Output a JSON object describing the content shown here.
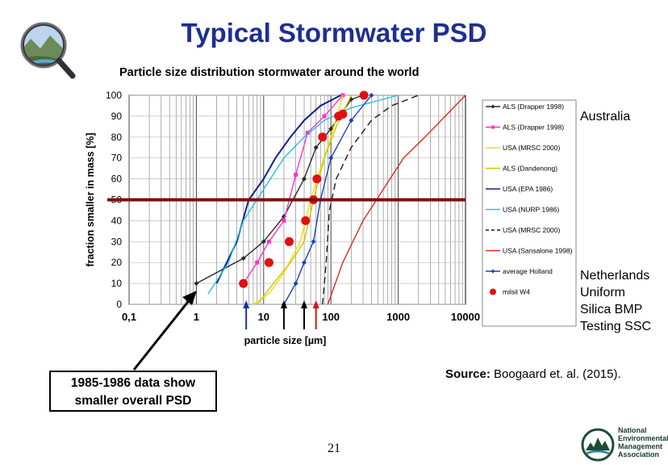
{
  "slide": {
    "title": "Typical Stormwater PSD",
    "page_number": "21",
    "source_label": "Source:",
    "source_text": " Boogaard et. al. (2015).",
    "callout": [
      "1985-1986 data show",
      "smaller overall PSD"
    ],
    "side_notes": {
      "australia": "Australia",
      "netherlands": [
        "Netherlands",
        "Uniform",
        "Silica BMP",
        "Testing SSC"
      ]
    },
    "logo_text": [
      "National",
      "Environmental",
      "Management",
      "Association"
    ]
  },
  "chart_data": {
    "type": "line",
    "title": "Particle size distribution stormwater around the world",
    "xlabel": "particle size [µm]",
    "ylabel": "fraction smaller in mass [%]",
    "x_scale": "log",
    "xlim": [
      0.1,
      10000
    ],
    "ylim": [
      0,
      100
    ],
    "xticks": [
      0.1,
      1,
      10,
      100,
      1000,
      10000
    ],
    "xtick_labels": [
      "0,1",
      "1",
      "10",
      "100",
      "1000",
      "10000"
    ],
    "yticks": [
      0,
      10,
      20,
      30,
      40,
      50,
      60,
      70,
      80,
      90,
      100
    ],
    "grid": true,
    "legend_position": "right",
    "reference_line_y": 50,
    "colors": {
      "reference_line": "#7b1010",
      "arrow_blue": "#1a2fb0",
      "arrow_black": "#000000",
      "arrow_red": "#e01010"
    },
    "arrows_at_x": [
      {
        "x": 5.5,
        "color": "#1a2fb0"
      },
      {
        "x": 20,
        "color": "#000000"
      },
      {
        "x": 40,
        "color": "#000000"
      },
      {
        "x": 60,
        "color": "#e01010"
      }
    ],
    "series": [
      {
        "name": "ALS (Drapper 1998)",
        "color": "#2a2a2a",
        "dash": "",
        "marker": "diamond",
        "x": [
          1,
          5,
          10,
          20,
          40,
          60,
          100,
          200,
          300
        ],
        "y": [
          10,
          22,
          30,
          42,
          60,
          75,
          84,
          98,
          100
        ]
      },
      {
        "name": "ALS (Drapper 1998)",
        "color": "#ff33cc",
        "dash": "",
        "marker": "square",
        "x": [
          5,
          8,
          12,
          20,
          30,
          45,
          80,
          150
        ],
        "y": [
          10,
          20,
          30,
          40,
          62,
          82,
          90,
          100
        ]
      },
      {
        "name": "USA (MRSC 2000)",
        "color": "#f0e000",
        "dash": "",
        "marker": "none",
        "x": [
          7,
          12,
          20,
          35,
          50,
          70,
          100,
          150
        ],
        "y": [
          0,
          5,
          15,
          30,
          50,
          65,
          80,
          100
        ]
      },
      {
        "name": "ALS  (Dandenong)",
        "color": "#d4c400",
        "dash": "",
        "marker": "none",
        "x": [
          8,
          14,
          25,
          40,
          55,
          80,
          120,
          200
        ],
        "y": [
          0,
          10,
          20,
          30,
          50,
          70,
          85,
          100
        ]
      },
      {
        "name": "USA (EPA 1986)",
        "color": "#12208c",
        "dash": "",
        "marker": "none",
        "x": [
          2,
          4,
          6,
          10,
          15,
          25,
          40,
          70,
          140
        ],
        "y": [
          10,
          30,
          50,
          60,
          70,
          80,
          88,
          95,
          100
        ]
      },
      {
        "name": "USA (NURP 1986)",
        "color": "#22c0e8",
        "dash": "",
        "marker": "none",
        "x": [
          1.5,
          3,
          5,
          10,
          20,
          40,
          80,
          200,
          1000
        ],
        "y": [
          5,
          20,
          40,
          55,
          70,
          80,
          88,
          94,
          100
        ]
      },
      {
        "name": "USA (MRSC 2000)",
        "color": "#1a1a1a",
        "dash": "8 5",
        "marker": "none",
        "x": [
          75,
          85,
          95,
          120,
          200,
          400,
          800,
          2000
        ],
        "y": [
          0,
          20,
          45,
          60,
          75,
          88,
          95,
          100
        ]
      },
      {
        "name": "USA (Sansalone 1998)",
        "color": "#e02a1a",
        "dash": "",
        "marker": "none",
        "x": [
          90,
          150,
          300,
          600,
          1200,
          2500,
          5000,
          10000
        ],
        "y": [
          0,
          20,
          40,
          55,
          70,
          80,
          90,
          100
        ]
      },
      {
        "name": "average Holland",
        "color": "#1840c0",
        "dash": "",
        "marker": "diamond",
        "x": [
          20,
          30,
          40,
          55,
          70,
          100,
          200,
          400
        ],
        "y": [
          0,
          10,
          20,
          30,
          50,
          70,
          88,
          100
        ]
      },
      {
        "name": "milsil W4",
        "color": "#e01010",
        "dash": "none",
        "marker": "circle",
        "x": [
          5,
          12,
          24,
          42,
          55,
          62,
          75,
          130,
          150,
          310
        ],
        "y": [
          10,
          20,
          30,
          40,
          50,
          60,
          80,
          90,
          91,
          100
        ]
      }
    ]
  }
}
